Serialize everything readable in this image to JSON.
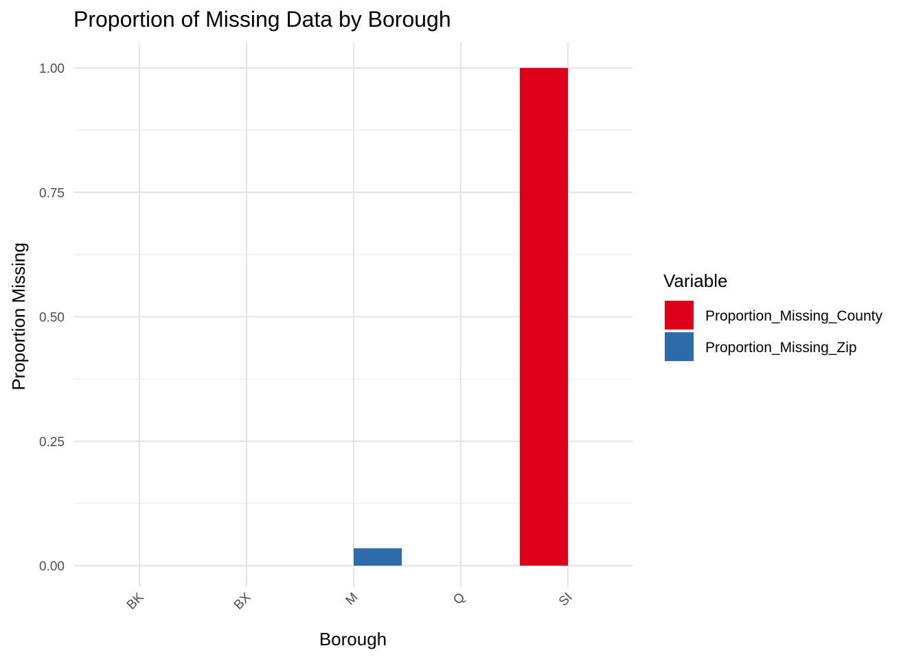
{
  "chart_data": {
    "type": "bar",
    "title": "Proportion of Missing Data by Borough",
    "xlabel": "Borough",
    "ylabel": "Proportion Missing",
    "categories": [
      "BK",
      "BX",
      "M",
      "Q",
      "SI"
    ],
    "series": [
      {
        "name": "Proportion_Missing_County",
        "color": "#DE001A",
        "values": [
          0,
          0,
          0,
          0,
          1.0
        ]
      },
      {
        "name": "Proportion_Missing_Zip",
        "color": "#2D6BAA",
        "values": [
          0,
          0,
          0.035,
          0,
          0
        ]
      }
    ],
    "ylim": [
      0,
      1.0
    ],
    "yticks": [
      "0.00",
      "0.25",
      "0.50",
      "0.75",
      "1.00"
    ],
    "ytick_values": [
      0,
      0.25,
      0.5,
      0.75,
      1.0
    ],
    "legend": {
      "title": "Variable",
      "position": "right"
    },
    "grid": true,
    "bar_layout": "dodge"
  }
}
